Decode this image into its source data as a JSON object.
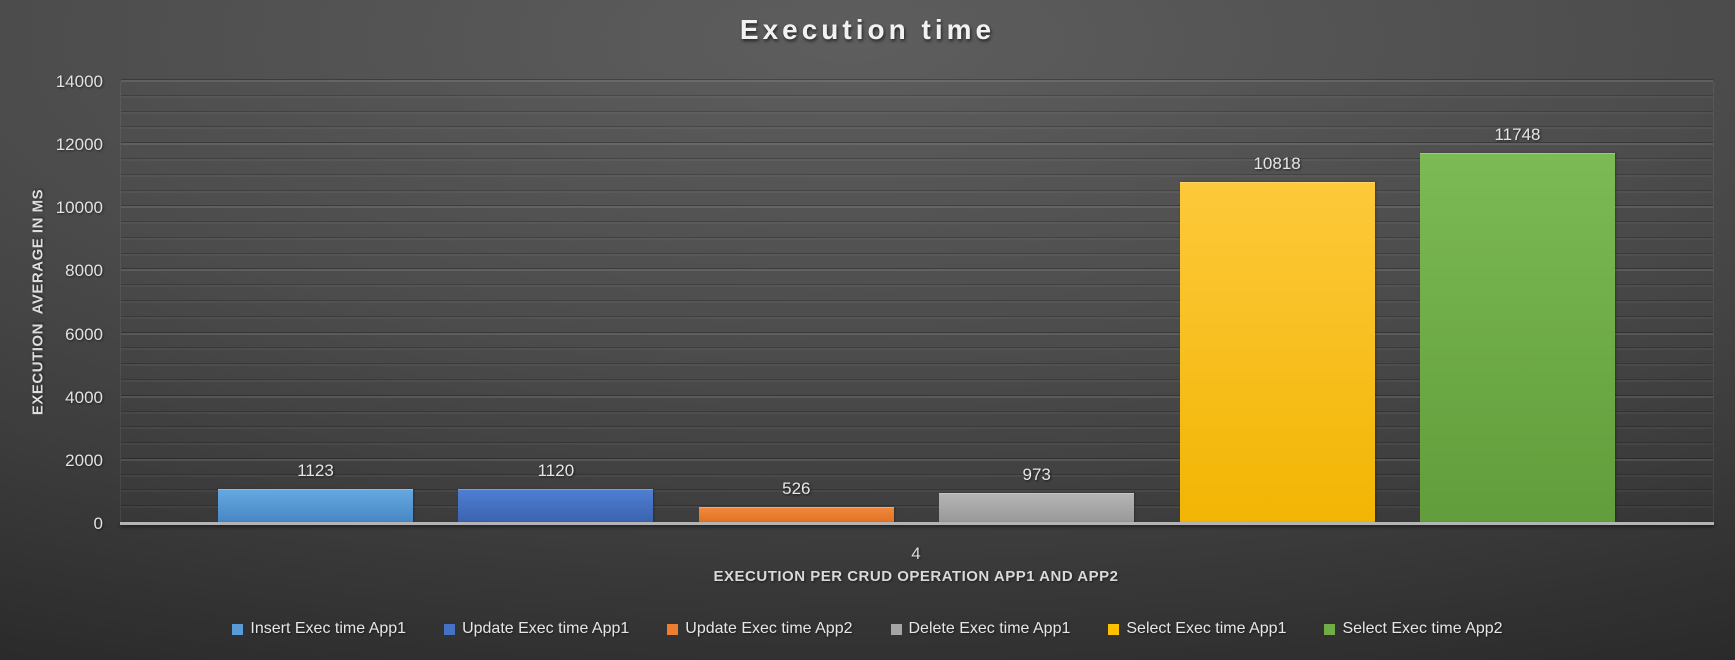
{
  "title": "Execution time",
  "chart_data": {
    "type": "bar",
    "title": "Execution time",
    "categories": [
      "4"
    ],
    "series": [
      {
        "name": "Insert Exec time App1",
        "values": [
          1123
        ],
        "color": "#5B9BD5",
        "gradient": [
          "#66a9e0",
          "#4585c4"
        ]
      },
      {
        "name": "Update Exec time App1",
        "values": [
          1120
        ],
        "color": "#4472C4",
        "gradient": [
          "#4f7fd4",
          "#3a61ad"
        ]
      },
      {
        "name": "Update Exec time App2",
        "values": [
          526
        ],
        "color": "#ED7D31",
        "gradient": [
          "#f18a3f",
          "#e06f1e"
        ]
      },
      {
        "name": "Delete Exec time App1",
        "values": [
          973
        ],
        "color": "#A5A5A5",
        "gradient": [
          "#b5b5b5",
          "#979797"
        ]
      },
      {
        "name": "Select Exec time App1",
        "values": [
          10818
        ],
        "color": "#FFC000",
        "gradient": [
          "#fdc93a",
          "#f2b503"
        ]
      },
      {
        "name": "Select Exec time App2",
        "values": [
          11748
        ],
        "color": "#70AD47",
        "gradient": [
          "#7cba55",
          "#619e3b"
        ]
      }
    ],
    "xlabel": "EXECUTION PER CRUD OPERATION APP1 AND APP2",
    "ylabel": "EXECUTION  AVERAGE IN MS",
    "ylim": [
      0,
      14000
    ],
    "y_major_step": 2000,
    "y_minor_step": 500,
    "y_tick_labels": [
      "0",
      "2000",
      "4000",
      "6000",
      "8000",
      "10000",
      "12000",
      "14000"
    ],
    "grid": "on",
    "legend_position": "bottom",
    "data_labels": true,
    "background": "#4c4c4c",
    "text_color": "#e2e2e2"
  }
}
